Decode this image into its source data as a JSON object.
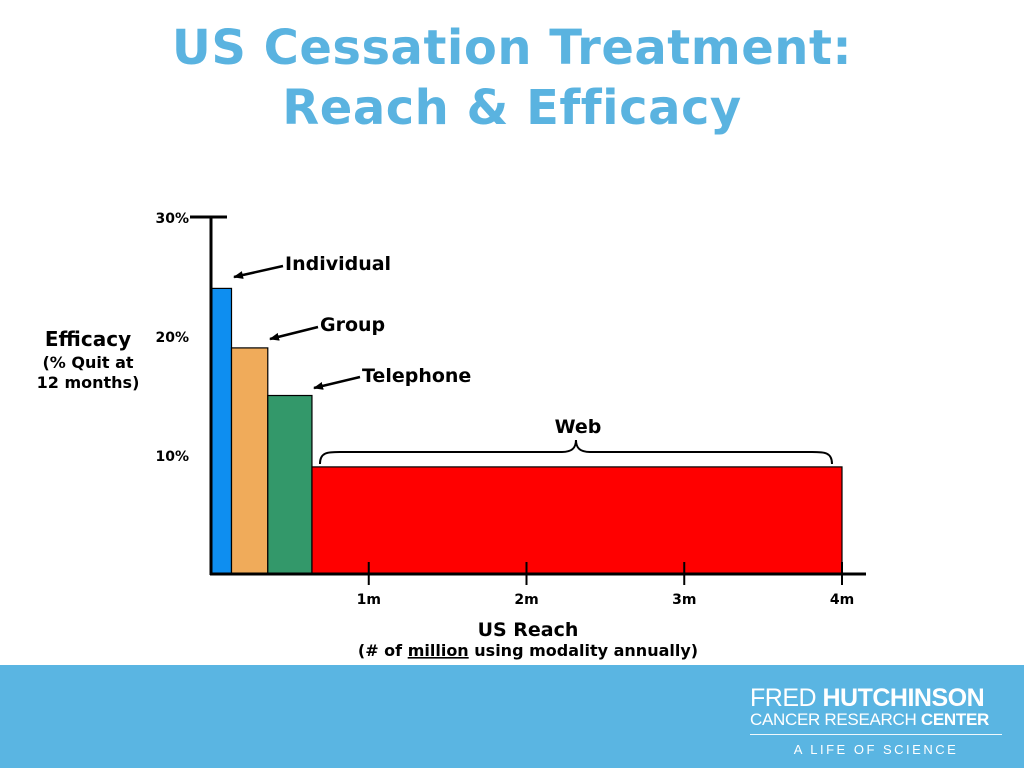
{
  "title": {
    "line1": "US Cessation Treatment:",
    "line2": "Reach & Efficacy"
  },
  "chart_data": {
    "type": "bar",
    "title": "US Cessation Treatment: Reach & Efficacy",
    "ylabel_lines": [
      "Efficacy",
      "(% Quit at",
      "12 months)"
    ],
    "xlabel": "US Reach",
    "xsublabel_pre": "(# of ",
    "xsublabel_underlined": "million",
    "xsublabel_post": " using modality annually)",
    "yticks": [
      {
        "value": 10,
        "label": "10%"
      },
      {
        "value": 20,
        "label": "20%"
      },
      {
        "value": 30,
        "label": "30%"
      }
    ],
    "xticks": [
      {
        "value": 1,
        "label": "1m"
      },
      {
        "value": 2,
        "label": "2m"
      },
      {
        "value": 3,
        "label": "3m"
      },
      {
        "value": 4,
        "label": "4m"
      }
    ],
    "ylim": [
      0,
      30
    ],
    "xlim": [
      0,
      4.2
    ],
    "series": [
      {
        "name": "Individual",
        "reach_start": 0.0,
        "reach_end": 0.13,
        "efficacy": 24,
        "color": "#0e8ef0"
      },
      {
        "name": "Group",
        "reach_start": 0.13,
        "reach_end": 0.36,
        "efficacy": 19,
        "color": "#f0ab5a"
      },
      {
        "name": "Telephone",
        "reach_start": 0.36,
        "reach_end": 0.64,
        "efficacy": 15,
        "color": "#33986a"
      },
      {
        "name": "Web",
        "reach_start": 0.64,
        "reach_end": 4.0,
        "efficacy": 9,
        "color": "#ff0000"
      }
    ]
  },
  "footer": {
    "logo_line1_a": "FRED ",
    "logo_line1_b": "HUTCHINSON",
    "logo_line2_a": "CANCER RESEARCH ",
    "logo_line2_b": "CENTER",
    "tagline": "A LIFE OF SCIENCE",
    "background_color": "#5ab5e2"
  }
}
